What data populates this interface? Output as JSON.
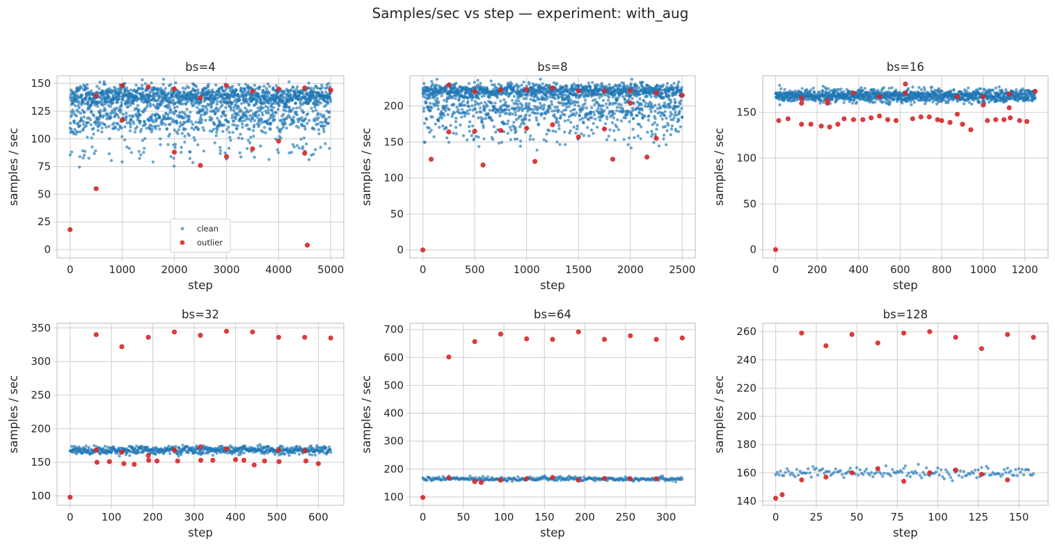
{
  "figure_title": "Samples/sec vs step — experiment: with_aug",
  "colors": {
    "clean": "#1f77b4",
    "outlier": "#d62728",
    "grid": "#d4d4d4",
    "frame": "#cccccc"
  },
  "legend": {
    "items": [
      "clean",
      "outlier"
    ],
    "placement": "lower center (first panel only)"
  },
  "chart_data": [
    {
      "type": "scatter",
      "title": "bs=4",
      "xlabel": "step",
      "ylabel": "samples / sec",
      "xlim": [
        -250,
        5250
      ],
      "ylim": [
        -7.5,
        157
      ],
      "xticks": [
        0,
        1000,
        2000,
        3000,
        4000,
        5000
      ],
      "yticks": [
        0,
        25,
        50,
        75,
        100,
        125,
        150
      ],
      "grid": true,
      "legend": true,
      "clean": {
        "n": 2000,
        "xmax": 5000,
        "bands": [
          [
            138,
            5,
            0.65
          ],
          [
            117,
            7,
            0.31
          ],
          [
            88,
            6,
            0.04
          ]
        ]
      },
      "outlier_points": [
        [
          0,
          18
        ],
        [
          500,
          55
        ],
        [
          500,
          139
        ],
        [
          1000,
          148
        ],
        [
          1000,
          117
        ],
        [
          1500,
          147
        ],
        [
          2000,
          145
        ],
        [
          2000,
          88
        ],
        [
          2500,
          137
        ],
        [
          2500,
          76
        ],
        [
          3000,
          148
        ],
        [
          3000,
          84
        ],
        [
          3500,
          143
        ],
        [
          3500,
          91
        ],
        [
          4000,
          145
        ],
        [
          4000,
          98
        ],
        [
          4500,
          146
        ],
        [
          4500,
          87
        ],
        [
          4550,
          4
        ],
        [
          5000,
          144
        ]
      ]
    },
    {
      "type": "scatter",
      "title": "bs=8",
      "xlabel": "step",
      "ylabel": "samples / sec",
      "xlim": [
        -125,
        2625
      ],
      "ylim": [
        -11,
        242
      ],
      "xticks": [
        0,
        500,
        1000,
        1500,
        2000,
        2500
      ],
      "yticks": [
        0,
        50,
        100,
        150,
        200
      ],
      "grid": true,
      "clean": {
        "n": 1800,
        "xmax": 2500,
        "bands": [
          [
            221,
            5,
            0.5
          ],
          [
            196,
            14,
            0.45
          ],
          [
            160,
            10,
            0.05
          ]
        ]
      },
      "outlier_points": [
        [
          0,
          0
        ],
        [
          80,
          126
        ],
        [
          250,
          229
        ],
        [
          250,
          164
        ],
        [
          500,
          220
        ],
        [
          500,
          165
        ],
        [
          580,
          118
        ],
        [
          750,
          222
        ],
        [
          750,
          166
        ],
        [
          1000,
          223
        ],
        [
          1000,
          169
        ],
        [
          1080,
          123
        ],
        [
          1250,
          225
        ],
        [
          1250,
          174
        ],
        [
          1500,
          221
        ],
        [
          1500,
          157
        ],
        [
          1750,
          221
        ],
        [
          1750,
          168
        ],
        [
          1830,
          126
        ],
        [
          2000,
          221
        ],
        [
          2000,
          204
        ],
        [
          2160,
          129
        ],
        [
          2250,
          218
        ],
        [
          2250,
          155
        ],
        [
          2500,
          215
        ]
      ]
    },
    {
      "type": "scatter",
      "title": "bs=16",
      "xlabel": "step",
      "ylabel": "samples / sec",
      "xlim": [
        -62,
        1312
      ],
      "ylim": [
        -9,
        190
      ],
      "xticks": [
        0,
        200,
        400,
        600,
        800,
        1000,
        1200
      ],
      "yticks": [
        0,
        50,
        100,
        150
      ],
      "grid": true,
      "clean": {
        "n": 1250,
        "xmax": 1250,
        "bands": [
          [
            168,
            3.5,
            1.0
          ]
        ]
      },
      "outlier_points": [
        [
          0,
          0
        ],
        [
          15,
          141
        ],
        [
          60,
          143
        ],
        [
          125,
          165
        ],
        [
          125,
          160
        ],
        [
          125,
          137
        ],
        [
          170,
          137
        ],
        [
          220,
          135
        ],
        [
          250,
          163
        ],
        [
          250,
          160
        ],
        [
          260,
          134
        ],
        [
          300,
          137
        ],
        [
          330,
          143
        ],
        [
          375,
          171
        ],
        [
          375,
          142
        ],
        [
          420,
          142
        ],
        [
          460,
          144
        ],
        [
          500,
          167
        ],
        [
          500,
          146
        ],
        [
          540,
          142
        ],
        [
          580,
          141
        ],
        [
          625,
          181
        ],
        [
          625,
          171
        ],
        [
          660,
          143
        ],
        [
          700,
          145
        ],
        [
          740,
          145
        ],
        [
          780,
          142
        ],
        [
          800,
          141
        ],
        [
          840,
          139
        ],
        [
          875,
          167
        ],
        [
          875,
          148
        ],
        [
          900,
          137
        ],
        [
          940,
          131
        ],
        [
          1000,
          167
        ],
        [
          1000,
          158
        ],
        [
          1020,
          141
        ],
        [
          1060,
          142
        ],
        [
          1100,
          142
        ],
        [
          1125,
          170
        ],
        [
          1125,
          155
        ],
        [
          1130,
          144
        ],
        [
          1175,
          141
        ],
        [
          1210,
          140
        ],
        [
          1250,
          173
        ]
      ]
    },
    {
      "type": "scatter",
      "title": "bs=32",
      "xlabel": "step",
      "ylabel": "samples / sec",
      "xlim": [
        -31.5,
        661.5
      ],
      "ylim": [
        86,
        357
      ],
      "xticks": [
        0,
        100,
        200,
        300,
        400,
        500,
        600
      ],
      "yticks": [
        100,
        150,
        200,
        250,
        300,
        350
      ],
      "grid": true,
      "clean": {
        "n": 640,
        "xmax": 630,
        "bands": [
          [
            168,
            3,
            1.0
          ]
        ]
      },
      "outlier_points": [
        [
          0,
          98
        ],
        [
          63,
          340
        ],
        [
          63,
          168
        ],
        [
          65,
          150
        ],
        [
          95,
          151
        ],
        [
          125,
          322
        ],
        [
          125,
          165
        ],
        [
          130,
          148
        ],
        [
          155,
          147
        ],
        [
          189,
          336
        ],
        [
          189,
          160
        ],
        [
          190,
          153
        ],
        [
          210,
          152
        ],
        [
          252,
          344
        ],
        [
          252,
          168
        ],
        [
          260,
          152
        ],
        [
          315,
          339
        ],
        [
          315,
          173
        ],
        [
          316,
          153
        ],
        [
          345,
          153
        ],
        [
          378,
          345
        ],
        [
          378,
          170
        ],
        [
          400,
          154
        ],
        [
          420,
          153
        ],
        [
          441,
          344
        ],
        [
          445,
          146
        ],
        [
          470,
          152
        ],
        [
          504,
          336
        ],
        [
          504,
          168
        ],
        [
          505,
          151
        ],
        [
          567,
          336
        ],
        [
          567,
          167
        ],
        [
          570,
          152
        ],
        [
          600,
          148
        ],
        [
          630,
          335
        ]
      ]
    },
    {
      "type": "scatter",
      "title": "bs=64",
      "xlabel": "step",
      "ylabel": "samples / sec",
      "xlim": [
        -16,
        336
      ],
      "ylim": [
        70,
        723
      ],
      "xticks": [
        0,
        50,
        100,
        150,
        200,
        250,
        300
      ],
      "yticks": [
        100,
        200,
        300,
        400,
        500,
        600,
        700
      ],
      "grid": true,
      "clean": {
        "n": 320,
        "xmax": 320,
        "bands": [
          [
            165,
            4,
            1.0
          ]
        ]
      },
      "outlier_points": [
        [
          0,
          98
        ],
        [
          32,
          602
        ],
        [
          32,
          168
        ],
        [
          64,
          657
        ],
        [
          64,
          155
        ],
        [
          72,
          152
        ],
        [
          96,
          684
        ],
        [
          96,
          160
        ],
        [
          128,
          667
        ],
        [
          128,
          165
        ],
        [
          160,
          665
        ],
        [
          160,
          170
        ],
        [
          192,
          692
        ],
        [
          192,
          160
        ],
        [
          224,
          665
        ],
        [
          224,
          166
        ],
        [
          256,
          678
        ],
        [
          256,
          165
        ],
        [
          288,
          665
        ],
        [
          288,
          165
        ],
        [
          320,
          670
        ]
      ]
    },
    {
      "type": "scatter",
      "title": "bs=128",
      "xlabel": "step",
      "ylabel": "samples / sec",
      "xlim": [
        -8,
        168
      ],
      "ylim": [
        137,
        266
      ],
      "xticks": [
        0,
        25,
        50,
        75,
        100,
        125,
        150
      ],
      "yticks": [
        140,
        160,
        180,
        200,
        220,
        240,
        260
      ],
      "grid": true,
      "clean": {
        "n": 160,
        "xmax": 159,
        "bands": [
          [
            160,
            2,
            1.0
          ]
        ]
      },
      "outlier_points": [
        [
          0,
          142
        ],
        [
          4,
          144.5
        ],
        [
          16,
          259
        ],
        [
          16,
          155
        ],
        [
          31,
          250
        ],
        [
          31,
          157
        ],
        [
          47,
          258
        ],
        [
          47,
          160
        ],
        [
          63,
          252
        ],
        [
          63,
          163
        ],
        [
          79,
          259
        ],
        [
          79,
          154
        ],
        [
          95,
          260
        ],
        [
          95,
          160
        ],
        [
          111,
          256
        ],
        [
          111,
          162
        ],
        [
          127,
          248
        ],
        [
          127,
          159
        ],
        [
          143,
          258
        ],
        [
          143,
          155
        ],
        [
          159,
          256
        ]
      ]
    }
  ]
}
